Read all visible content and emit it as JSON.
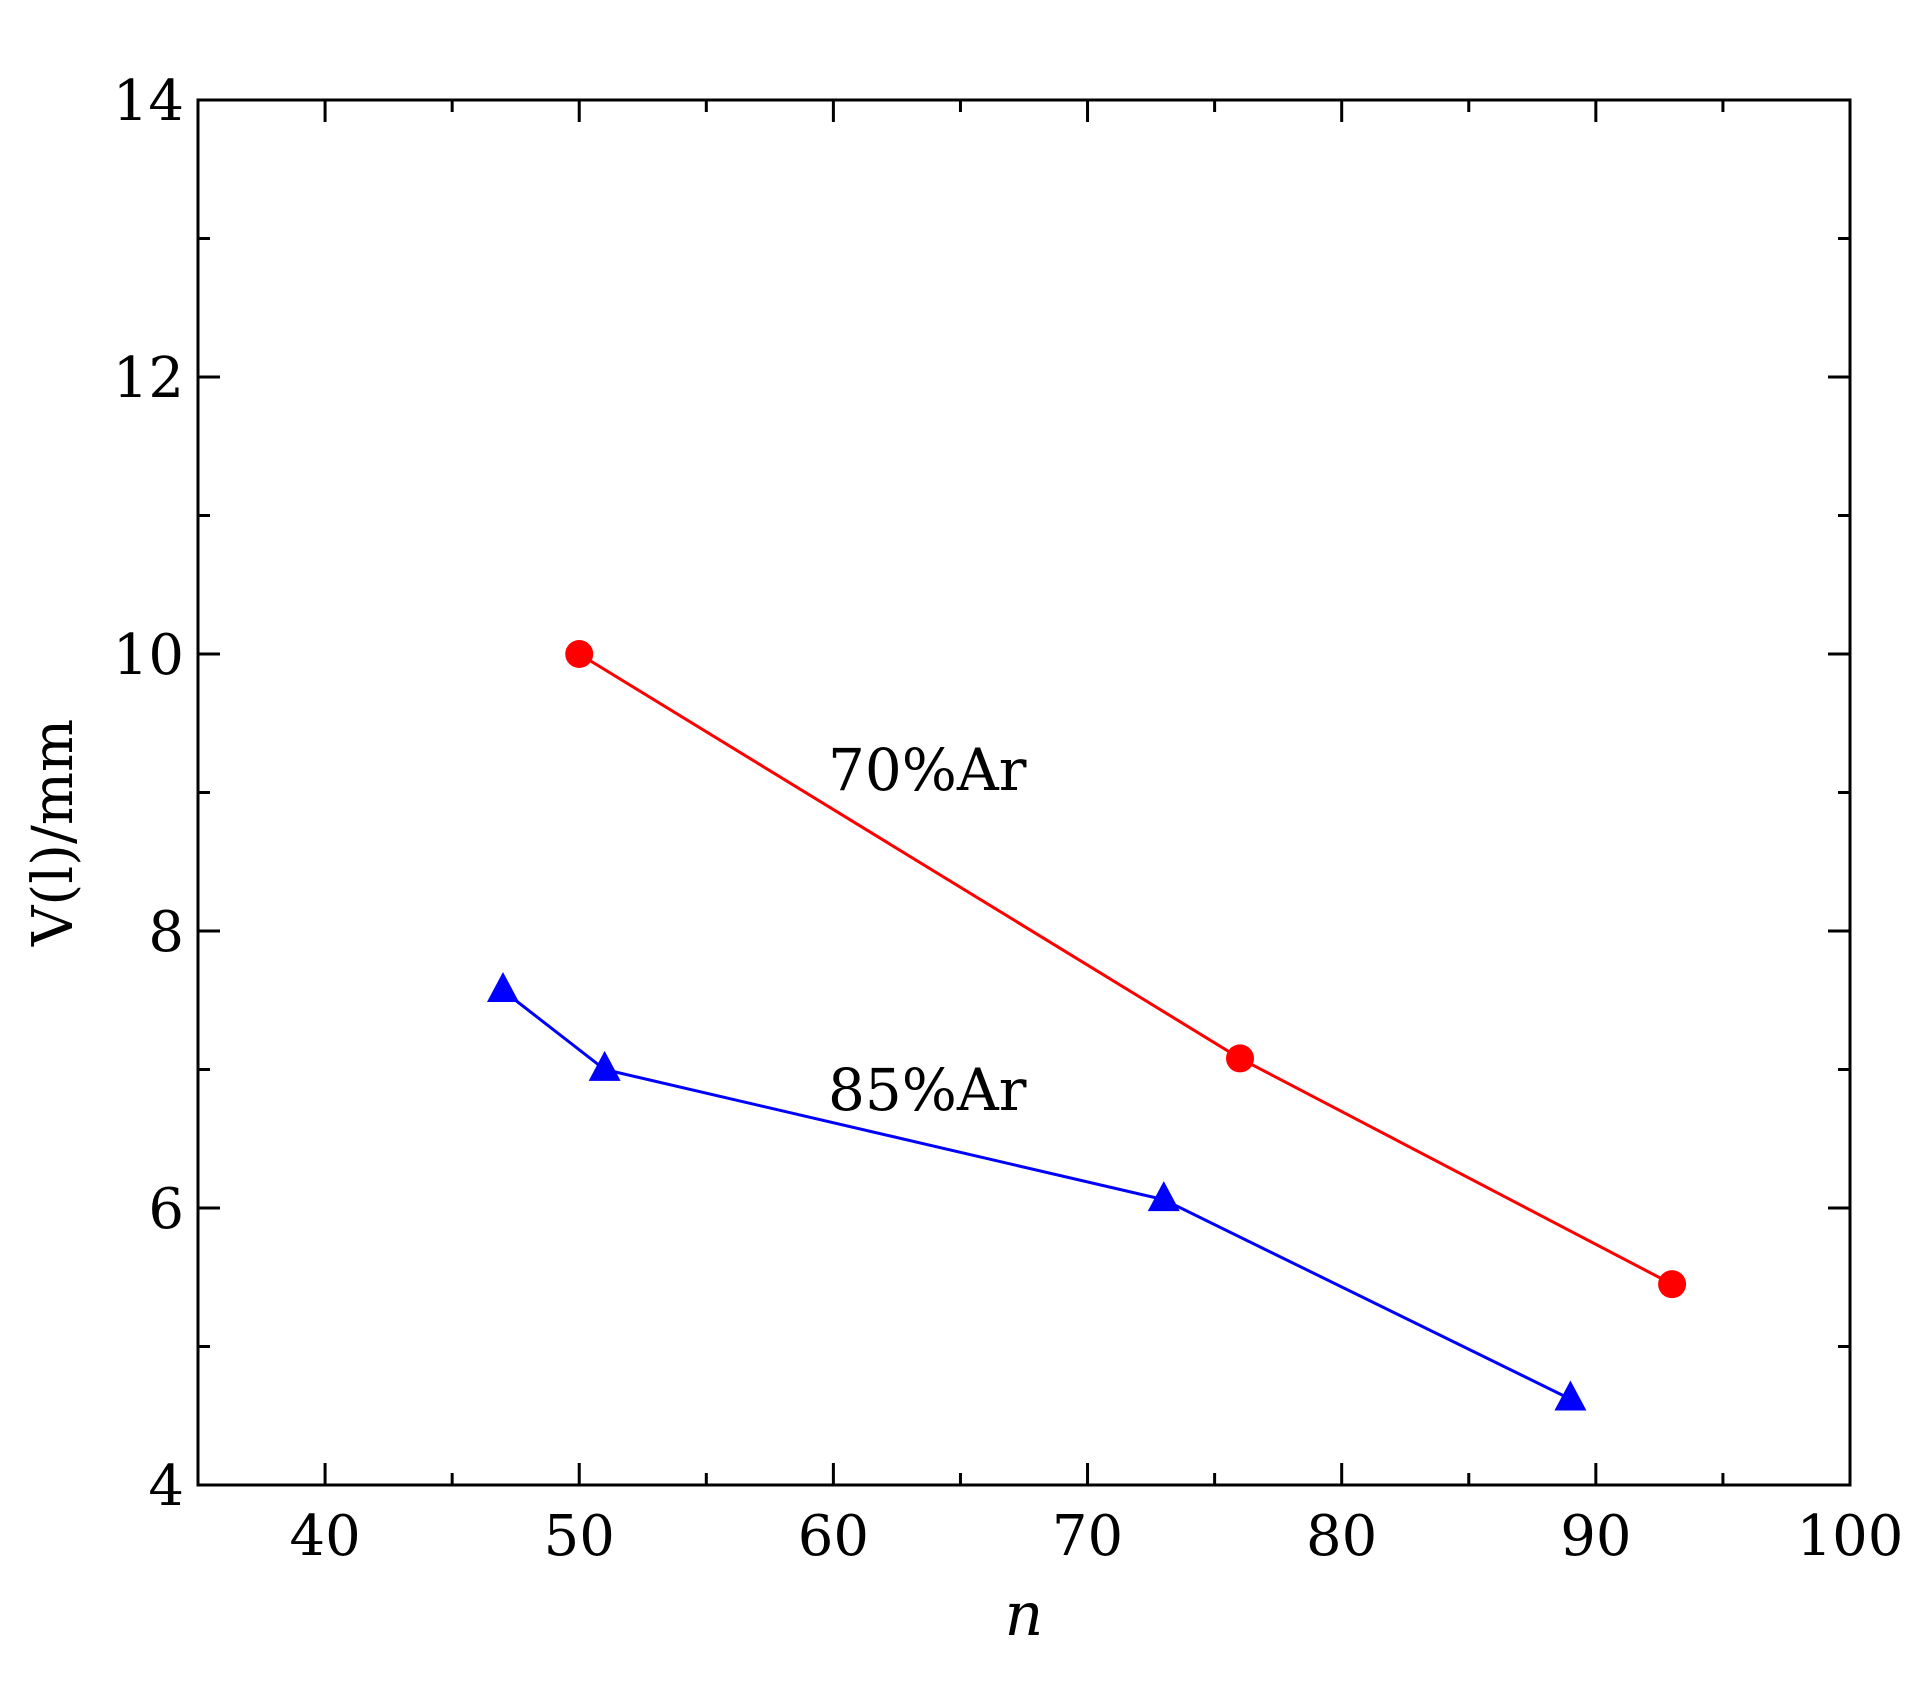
{
  "chart_data": {
    "type": "line",
    "xlabel": "n",
    "ylabel": "V(l)/mm",
    "xlim": [
      35,
      100
    ],
    "ylim": [
      4,
      14
    ],
    "xticks": [
      40,
      50,
      60,
      70,
      80,
      90,
      100
    ],
    "yticks": [
      4,
      6,
      8,
      10,
      12,
      14
    ],
    "xtick_labels": [
      "40",
      "50",
      "60",
      "70",
      "80",
      "90",
      "100"
    ],
    "ytick_labels": [
      "4",
      "6",
      "8",
      "10",
      "12",
      "14"
    ],
    "x_minor_step": 5,
    "y_minor_step": 1,
    "grid": false,
    "legend": "none",
    "series": [
      {
        "name": "70%Ar",
        "color": "#ff0000",
        "marker": "circle",
        "x": [
          50,
          76,
          93
        ],
        "y": [
          10.0,
          7.08,
          5.45
        ]
      },
      {
        "name": "85%Ar",
        "color": "#0000ff",
        "marker": "triangle",
        "x": [
          47,
          51,
          73,
          89
        ],
        "y": [
          7.57,
          7.0,
          6.06,
          4.62
        ]
      }
    ],
    "annotations": [
      {
        "text": "70%Ar",
        "series": 0
      },
      {
        "text": "85%Ar",
        "series": 1
      }
    ]
  }
}
